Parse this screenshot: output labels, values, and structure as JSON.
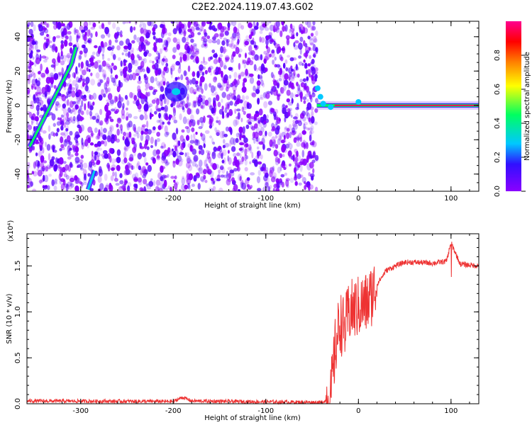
{
  "title": "C2E2.2024.119.07.43.G02",
  "chart_data": [
    {
      "type": "heatmap",
      "xlabel": "Height of straight line (km)",
      "ylabel": "Frequency (Hz)",
      "xlim": [
        -358,
        130
      ],
      "ylim": [
        -50,
        49
      ],
      "xticks": [
        -300,
        -200,
        -100,
        0,
        100
      ],
      "xtick_labels": [
        "-300",
        "-200",
        "-100",
        "0",
        "100"
      ],
      "yticks": [
        -40,
        -20,
        0,
        20,
        40
      ],
      "ytick_labels": [
        "-40",
        "-20",
        "0",
        "20",
        "40"
      ],
      "colorbar": {
        "label": "Normalized spectral amplitude",
        "range": [
          0.0,
          1.0
        ],
        "ticks": [
          0.0,
          0.2,
          0.4,
          0.6,
          0.8
        ],
        "tick_labels": [
          "0.0",
          "0.2",
          "0.4",
          "0.6",
          "0.8"
        ],
        "colormap": [
          "#8b00ff",
          "#2d10ff",
          "#00c8ff",
          "#00ff60",
          "#ffff00",
          "#ff8000",
          "#ff0000",
          "#ff0090"
        ]
      },
      "noise_region_x": [
        -358,
        -45
      ],
      "carrier": {
        "x_start": -45,
        "x_end": 130,
        "frequency_hz": 0,
        "amplitude": 0.95
      },
      "diagonal_tracks": [
        {
          "x": [
            -355,
            -340,
            -325,
            -310,
            -305
          ],
          "y": [
            -24,
            -8,
            8,
            24,
            34
          ],
          "amplitude": 0.45
        },
        {
          "x": [
            -292,
            -285
          ],
          "y": [
            -49,
            -38
          ],
          "amplitude": 0.3
        }
      ],
      "blob": {
        "x": -197,
        "y": 8,
        "amplitude": 0.3
      },
      "grid": false
    },
    {
      "type": "line",
      "xlabel": "Height of straight line (km)",
      "ylabel": "SNR (10 * v/v)",
      "y_multiplier": "(x10⁴)",
      "xlim": [
        -358,
        130
      ],
      "ylim": [
        0,
        18500
      ],
      "xticks": [
        -300,
        -200,
        -100,
        0,
        100
      ],
      "xtick_labels": [
        "-300",
        "-200",
        "-100",
        "0",
        "100"
      ],
      "yticks": [
        0,
        5000,
        10000,
        15000
      ],
      "ytick_labels": [
        "0.0",
        "0.5",
        "1.0",
        "1.5"
      ],
      "color": "#ee3333",
      "series_outline": {
        "x": [
          -358,
          -200,
          -190,
          -180,
          -40,
          -30,
          -25,
          -20,
          -15,
          -10,
          0,
          10,
          20,
          30,
          40,
          50,
          60,
          80,
          95,
          100,
          110,
          130
        ],
        "y": [
          300,
          250,
          700,
          300,
          150,
          600,
          6000,
          9000,
          8000,
          10000,
          10500,
          11000,
          13000,
          14500,
          15000,
          15400,
          15400,
          15300,
          15500,
          17500,
          15200,
          15000
        ]
      },
      "grid": false
    }
  ]
}
